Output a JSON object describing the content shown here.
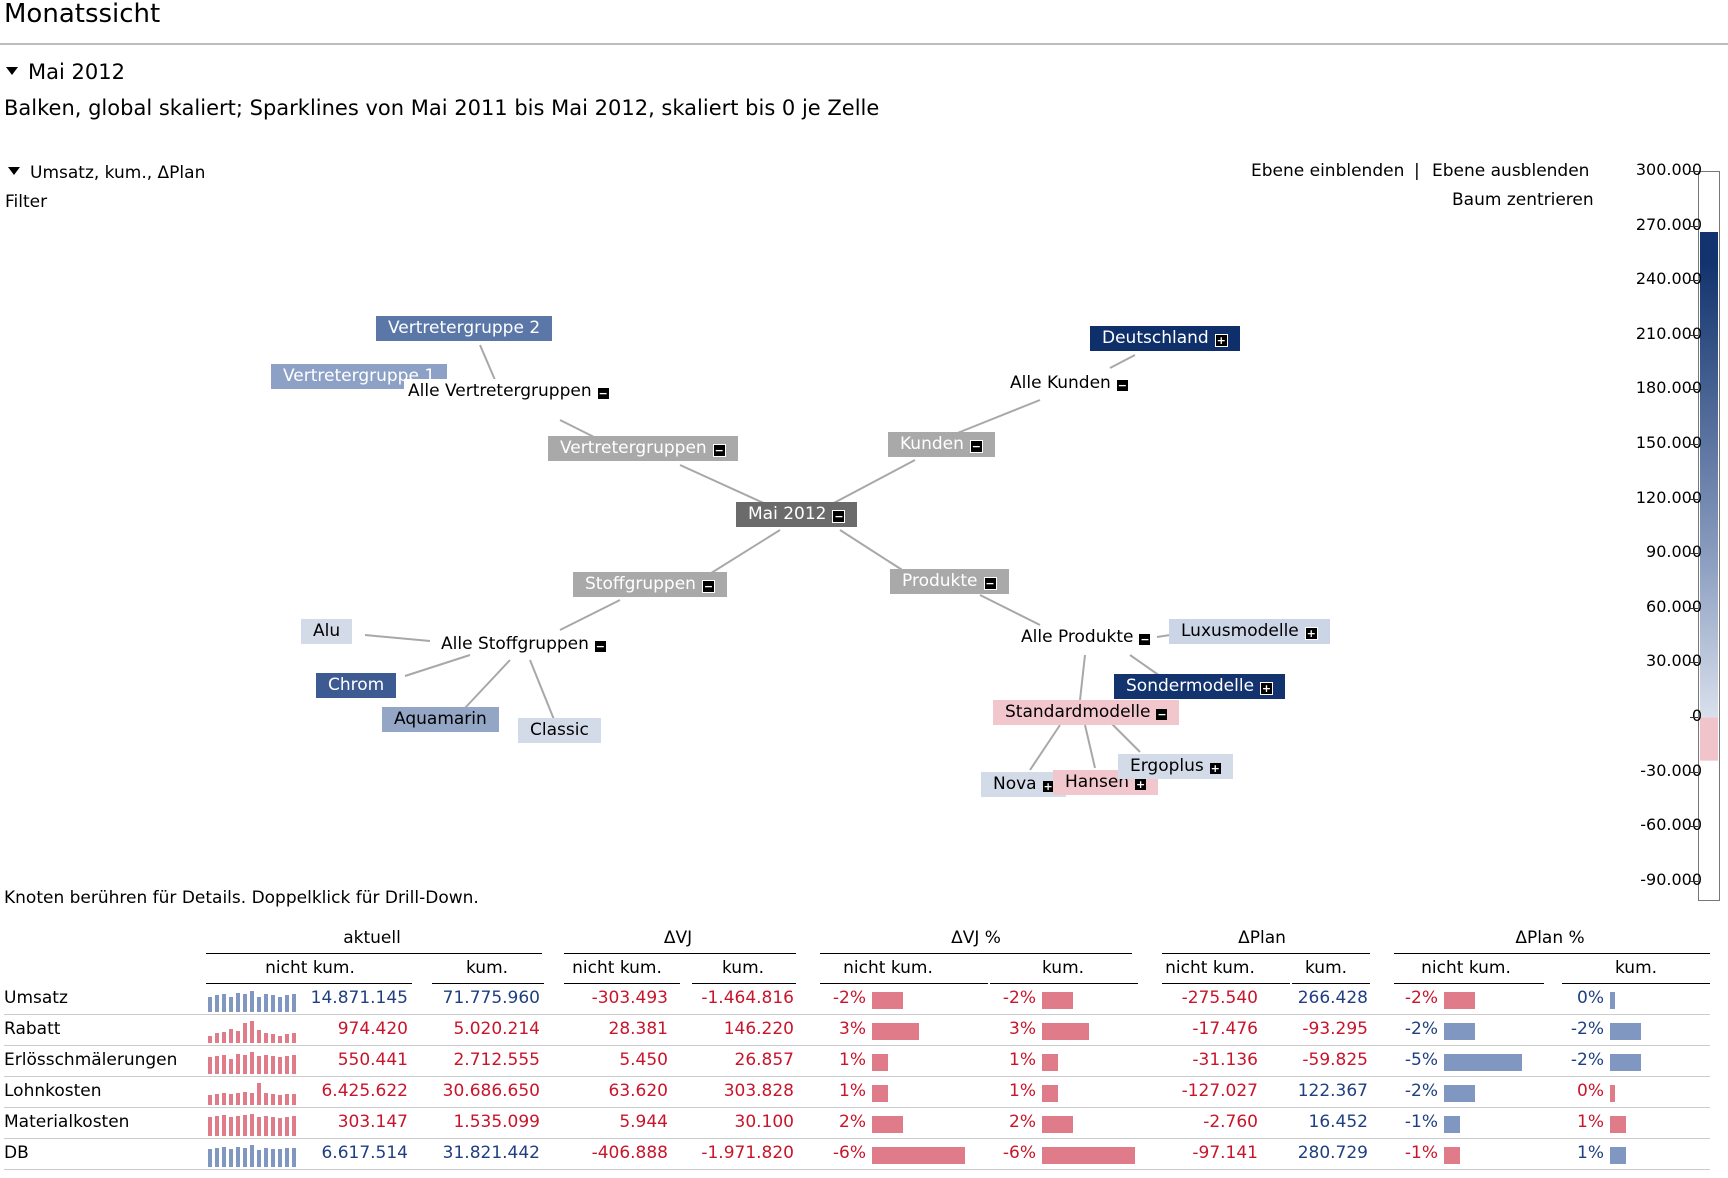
{
  "header": {
    "title": "Monatssicht",
    "period": "Mai 2012",
    "subtitle": "Balken, global skaliert; Sparklines von Mai 2011 bis Mai 2012, skaliert bis 0 je Zelle",
    "measure": "Umsatz, kum., ΔPlan",
    "filter": "Filter",
    "show_level": "Ebene einblenden",
    "separator": "|",
    "hide_level": "Ebene ausblenden",
    "center_tree": "Baum zentrieren",
    "hint": "Knoten berühren für Details. Doppelklick für Drill-Down."
  },
  "tree": {
    "root": "Mai 2012",
    "vertretergruppen": "Vertretergruppen",
    "alle_vertretergruppen": "Alle Vertretergruppen",
    "vertretergruppe_1": "Vertretergruppe 1",
    "vertretergruppe_2": "Vertretergruppe 2",
    "kunden": "Kunden",
    "alle_kunden": "Alle Kunden",
    "deutschland": "Deutschland",
    "stoffgruppen": "Stoffgruppen",
    "alle_stoffgruppen": "Alle Stoffgruppen",
    "alu": "Alu",
    "chrom": "Chrom",
    "aquamarin": "Aquamarin",
    "classic": "Classic",
    "produkte": "Produkte",
    "alle_produkte": "Alle Produkte",
    "luxusmodelle": "Luxusmodelle",
    "sondermodelle": "Sondermodelle",
    "standardmodelle": "Standardmodelle",
    "nova": "Nova",
    "hansen": "Hansen",
    "ergoplus": "Ergoplus",
    "expand_symbol": "+",
    "collapse_symbol": "−"
  },
  "scale": {
    "ticks": [
      "300.000",
      "270.000",
      "240.000",
      "210.000",
      "180.000",
      "150.000",
      "120.000",
      "90.000",
      "60.000",
      "30.000",
      "0",
      "-30.000",
      "-60.000",
      "-90.000"
    ],
    "colors": {
      "high": "#12336e",
      "mid": "#d9e0ec",
      "low": "#f1c4cb"
    }
  },
  "table": {
    "groups": [
      "aktuell",
      "ΔVJ",
      "ΔVJ %",
      "ΔPlan",
      "ΔPlan %"
    ],
    "sub_nicht": "nicht kum.",
    "sub_kum": "kum.",
    "rows": [
      {
        "label": "Umsatz",
        "akt": "14.871.145",
        "akt_k": "71.775.960",
        "vj": "-303.493",
        "vj_k": "-1.464.816",
        "vjp": "-2%",
        "vjp_k": "-2%",
        "pl": "-275.540",
        "pl_k": "266.428",
        "plp": "-2%",
        "plp_k": "0%"
      },
      {
        "label": "Rabatt",
        "akt": "974.420",
        "akt_k": "5.020.214",
        "vj": "28.381",
        "vj_k": "146.220",
        "vjp": "3%",
        "vjp_k": "3%",
        "pl": "-17.476",
        "pl_k": "-93.295",
        "plp": "-2%",
        "plp_k": "-2%"
      },
      {
        "label": "Erlösschmälerungen",
        "akt": "550.441",
        "akt_k": "2.712.555",
        "vj": "5.450",
        "vj_k": "26.857",
        "vjp": "1%",
        "vjp_k": "1%",
        "pl": "-31.136",
        "pl_k": "-59.825",
        "plp": "-5%",
        "plp_k": "-2%"
      },
      {
        "label": "Lohnkosten",
        "akt": "6.425.622",
        "akt_k": "30.686.650",
        "vj": "63.620",
        "vj_k": "303.828",
        "vjp": "1%",
        "vjp_k": "1%",
        "pl": "-127.027",
        "pl_k": "122.367",
        "plp": "-2%",
        "plp_k": "0%"
      },
      {
        "label": "Materialkosten",
        "akt": "303.147",
        "akt_k": "1.535.099",
        "vj": "5.944",
        "vj_k": "30.100",
        "vjp": "2%",
        "vjp_k": "2%",
        "pl": "-2.760",
        "pl_k": "16.452",
        "plp": "-1%",
        "plp_k": "1%"
      },
      {
        "label": "DB",
        "akt": "6.617.514",
        "akt_k": "31.821.442",
        "vj": "-406.888",
        "vj_k": "-1.971.820",
        "vjp": "-6%",
        "vjp_k": "-6%",
        "pl": "-97.141",
        "pl_k": "280.729",
        "plp": "-1%",
        "plp_k": "1%"
      }
    ],
    "colors": {
      "red": "#c9152b",
      "blue": "#1e3f82",
      "bar_red": "#e07b89",
      "bar_blue": "#7f97c1"
    }
  }
}
